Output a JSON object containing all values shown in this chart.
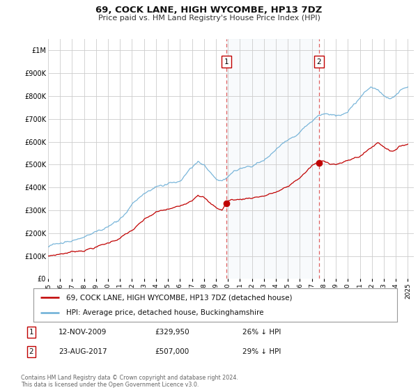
{
  "title": "69, COCK LANE, HIGH WYCOMBE, HP13 7DZ",
  "subtitle": "Price paid vs. HM Land Registry's House Price Index (HPI)",
  "ylim": [
    0,
    1050000
  ],
  "yticks": [
    0,
    100000,
    200000,
    300000,
    400000,
    500000,
    600000,
    700000,
    800000,
    900000,
    1000000
  ],
  "ytick_labels": [
    "£0",
    "£100K",
    "£200K",
    "£300K",
    "£400K",
    "£500K",
    "£600K",
    "£700K",
    "£800K",
    "£900K",
    "£1M"
  ],
  "hpi_color": "#6baed6",
  "price_color": "#c00000",
  "marker1_year": 2009.875,
  "marker1_price": 329950,
  "marker1_label": "1",
  "marker1_date_str": "12-NOV-2009",
  "marker1_price_str": "£329,950",
  "marker1_info": "26% ↓ HPI",
  "marker2_year": 2017.583,
  "marker2_price": 507000,
  "marker2_label": "2",
  "marker2_date_str": "23-AUG-2017",
  "marker2_price_str": "£507,000",
  "marker2_info": "29% ↓ HPI",
  "legend_line1": "69, COCK LANE, HIGH WYCOMBE, HP13 7DZ (detached house)",
  "legend_line2": "HPI: Average price, detached house, Buckinghamshire",
  "footnote": "Contains HM Land Registry data © Crown copyright and database right 2024.\nThis data is licensed under the Open Government Licence v3.0.",
  "background_color": "#ffffff",
  "plot_bg_color": "#ffffff",
  "grid_color": "#cccccc",
  "shade_color": "#dce6f1",
  "dashed_color": "#e06060"
}
